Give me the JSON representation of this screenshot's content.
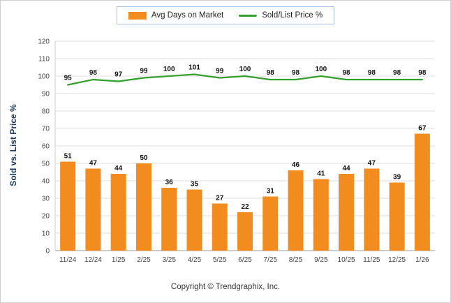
{
  "legend": {
    "items": [
      {
        "label": "Avg Days on Market"
      },
      {
        "label": "Sold/List Price %"
      }
    ]
  },
  "footer": {
    "copyright": "Copyright © Trendgraphix, Inc."
  },
  "chart_data": {
    "type": "bar+line",
    "title": "",
    "xlabel": "",
    "ylabel": "Sold vs. List Price %",
    "ylim": [
      0,
      120
    ],
    "ytick_step": 10,
    "grid": true,
    "legend_position": "top",
    "categories": [
      "11/24",
      "12/24",
      "1/25",
      "2/25",
      "3/25",
      "4/25",
      "5/25",
      "6/25",
      "7/25",
      "8/25",
      "9/25",
      "10/25",
      "11/25",
      "12/25",
      "1/26"
    ],
    "series": [
      {
        "name": "Avg Days on Market",
        "type": "bar",
        "color": "#f28c1e",
        "values": [
          51,
          47,
          44,
          50,
          36,
          35,
          27,
          22,
          31,
          46,
          41,
          44,
          47,
          39,
          67
        ]
      },
      {
        "name": "Sold/List Price %",
        "type": "line",
        "color": "#33a02c",
        "values": [
          95,
          98,
          97,
          99,
          100,
          101,
          99,
          100,
          98,
          98,
          100,
          98,
          98,
          98,
          98
        ]
      }
    ]
  }
}
